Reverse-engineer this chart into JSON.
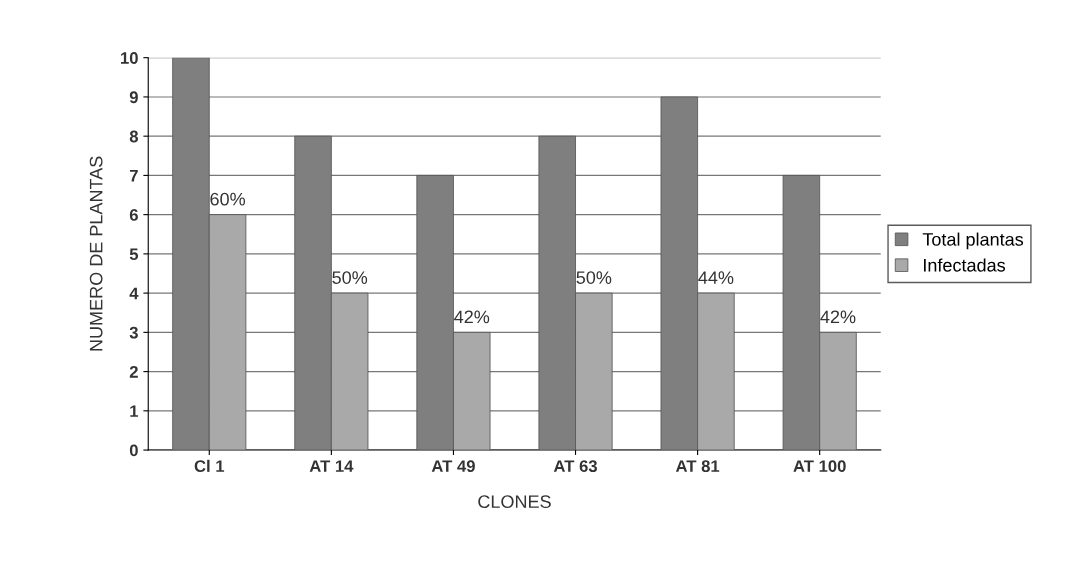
{
  "chart_data": {
    "type": "bar",
    "xlabel": "CLONES",
    "ylabel": "NUMERO DE PLANTAS",
    "categories": [
      "Cl 1",
      "AT 14",
      "AT 49",
      "AT 63",
      "AT 81",
      "AT 100"
    ],
    "series": [
      {
        "name": "Total plantas",
        "color": "#7f7f7f",
        "values": [
          10,
          8,
          7,
          8,
          9,
          7
        ]
      },
      {
        "name": "Infectadas",
        "color": "#a9a9a9",
        "values": [
          6,
          4,
          3,
          4,
          4,
          3
        ]
      }
    ],
    "annotations": [
      {
        "text": "60%",
        "x": "Cl 1",
        "y": 6
      },
      {
        "text": "50%",
        "x": "AT 14",
        "y": 4
      },
      {
        "text": "42%",
        "x": "AT 49",
        "y": 3
      },
      {
        "text": "50%",
        "x": "AT 63",
        "y": 4
      },
      {
        "text": "44%",
        "x": "AT 81",
        "y": 4
      },
      {
        "text": "42%",
        "x": "AT 100",
        "y": 3
      }
    ],
    "ylim": [
      0,
      10
    ],
    "yticks": [
      0,
      1,
      2,
      3,
      4,
      5,
      6,
      7,
      8,
      9,
      10
    ],
    "grid": "y",
    "legend": "right"
  }
}
